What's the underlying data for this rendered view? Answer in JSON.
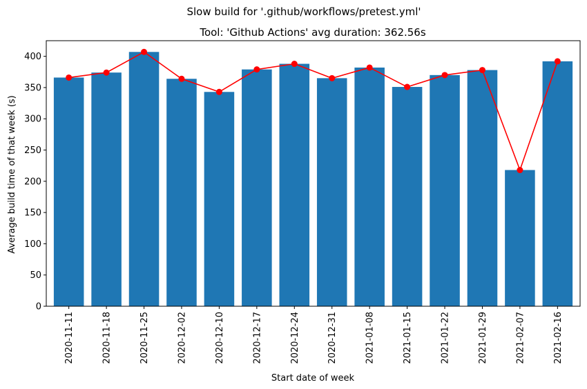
{
  "chart_data": {
    "type": "bar",
    "suptitle": "Slow build for '.github/workflows/pretest.yml'",
    "title": "Tool: 'Github Actions' avg duration: 362.56s",
    "xlabel": "Start date of week",
    "ylabel": "Average build time of that week (s)",
    "categories": [
      "2020-11-11",
      "2020-11-18",
      "2020-11-25",
      "2020-12-02",
      "2020-12-10",
      "2020-12-17",
      "2020-12-24",
      "2020-12-31",
      "2021-01-08",
      "2021-01-15",
      "2021-01-22",
      "2021-01-29",
      "2021-02-07",
      "2021-02-16"
    ],
    "series": [
      {
        "type": "bar",
        "color": "#1f77b4",
        "values": [
          366,
          374,
          407,
          364,
          343,
          379,
          388,
          365,
          382,
          351,
          370,
          378,
          218,
          392
        ]
      },
      {
        "type": "line",
        "color": "#ff0000",
        "marker": "circle",
        "values": [
          366,
          374,
          407,
          364,
          343,
          379,
          388,
          365,
          382,
          351,
          370,
          378,
          218,
          392
        ]
      }
    ],
    "ylim": [
      0,
      425
    ],
    "yticks": [
      0,
      50,
      100,
      150,
      200,
      250,
      300,
      350,
      400
    ],
    "grid": false
  }
}
